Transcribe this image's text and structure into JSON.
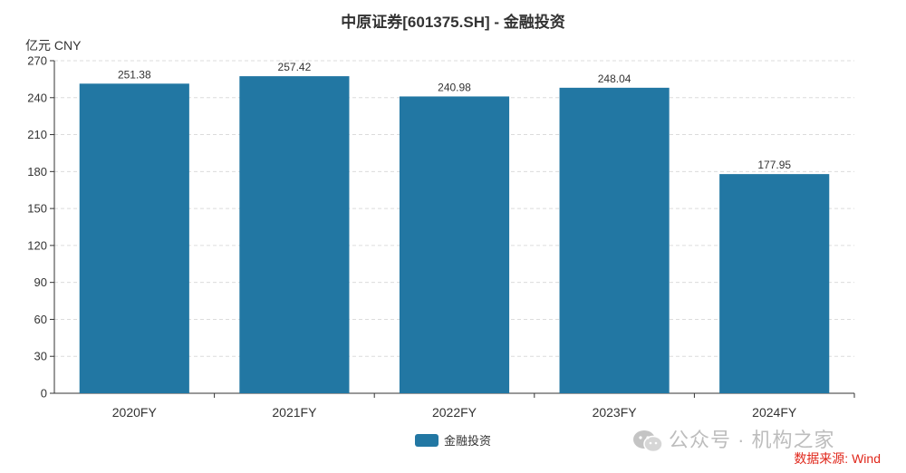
{
  "page": {
    "title": "中原证券[601375.SH] - 金融投资",
    "unit": "亿元  CNY",
    "watermark_text": "公众号 · 机构之家",
    "source": "数据来源: Wind"
  },
  "chart_data": {
    "type": "bar",
    "title": "中原证券[601375.SH] - 金融投资",
    "ylabel": "亿元  CNY",
    "xlabel": "",
    "categories": [
      "2020FY",
      "2021FY",
      "2022FY",
      "2023FY",
      "2024FY"
    ],
    "series": [
      {
        "name": "金融投资",
        "values": [
          251.38,
          257.42,
          240.98,
          248.04,
          177.95
        ],
        "color": "#2277a3"
      }
    ],
    "value_labels": [
      "251.38",
      "257.42",
      "240.98",
      "248.04",
      "177.95"
    ],
    "ylim": [
      0,
      270
    ],
    "yticks": [
      0,
      30,
      60,
      90,
      120,
      150,
      180,
      210,
      240,
      270
    ],
    "grid": true,
    "legend_position": "bottom-center"
  }
}
